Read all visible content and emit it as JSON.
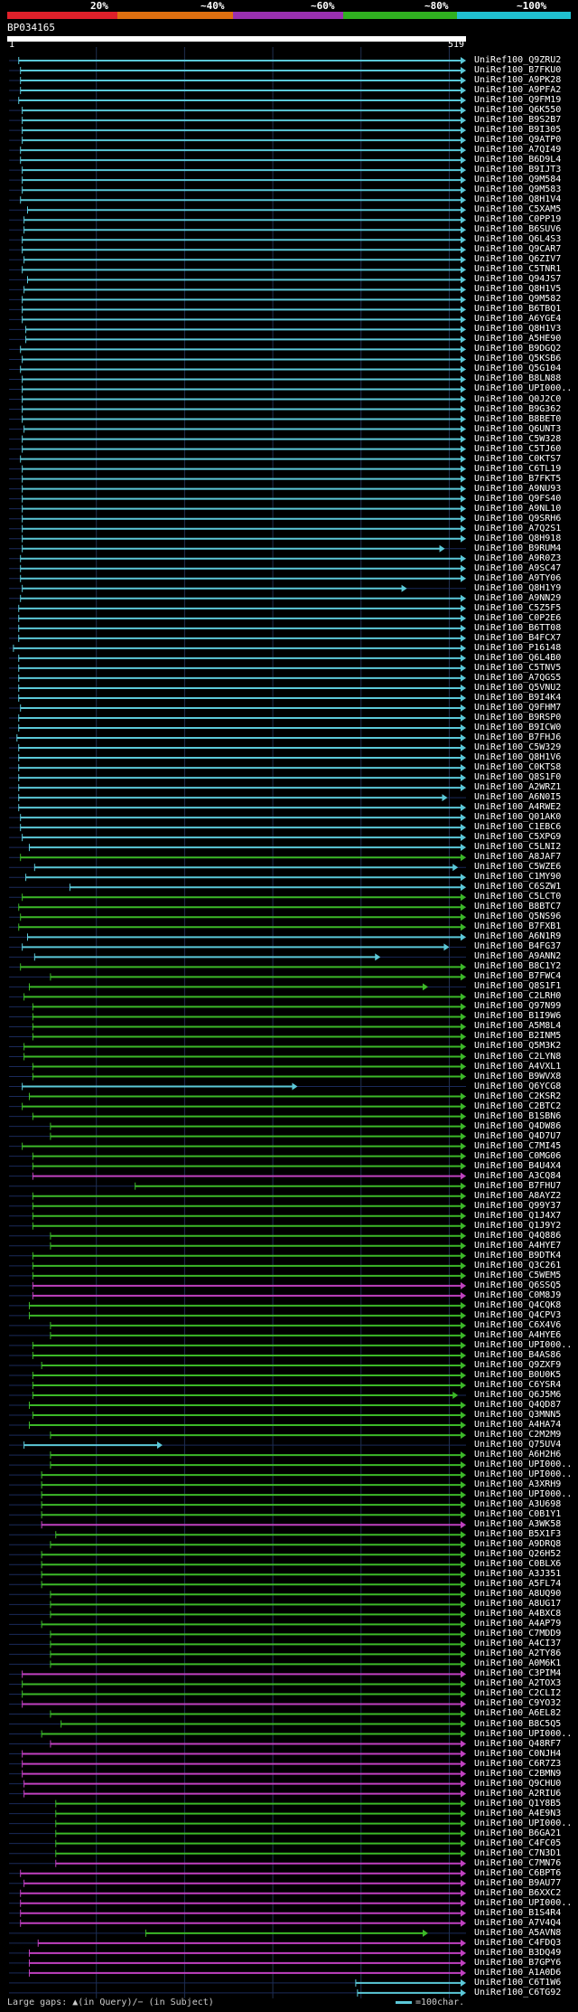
{
  "legend": [
    {
      "label": "20%",
      "color": "#e0202a"
    },
    {
      "label": "~40%",
      "color": "#e07010"
    },
    {
      "label": "~60%",
      "color": "#9a30b0"
    },
    {
      "label": "~80%",
      "color": "#30b020"
    },
    {
      "label": "~100%",
      "color": "#20c0d0"
    }
  ],
  "query": {
    "name": "BP034165",
    "start": "1",
    "end": "519"
  },
  "footer": {
    "gaps_text": "Large gaps: ▲(in Query)/− (in Subject)",
    "scale_text": "=100char."
  },
  "colors": {
    "cyan": "#5bc8d8",
    "green": "#3cb828",
    "magenta": "#c040c0",
    "grid": "#203050",
    "ruler": "#ffffff"
  },
  "hits": [
    {
      "name": "UniRef100_Q9ZRU2",
      "c": "cyan",
      "s": 12,
      "e": 519
    },
    {
      "name": "UniRef100_B7FKU0",
      "c": "cyan",
      "s": 14,
      "e": 519
    },
    {
      "name": "UniRef100_A9PK28",
      "c": "cyan",
      "s": 14,
      "e": 519
    },
    {
      "name": "UniRef100_A9PFA2",
      "c": "cyan",
      "s": 14,
      "e": 519
    },
    {
      "name": "UniRef100_Q9FM19",
      "c": "cyan",
      "s": 12,
      "e": 519
    },
    {
      "name": "UniRef100_Q6K550",
      "c": "cyan",
      "s": 16,
      "e": 519
    },
    {
      "name": "UniRef100_B9S2B7",
      "c": "cyan",
      "s": 16,
      "e": 519
    },
    {
      "name": "UniRef100_B9I305",
      "c": "cyan",
      "s": 16,
      "e": 519
    },
    {
      "name": "UniRef100_Q9ATP0",
      "c": "cyan",
      "s": 16,
      "e": 519
    },
    {
      "name": "UniRef100_A7QI49",
      "c": "cyan",
      "s": 14,
      "e": 519
    },
    {
      "name": "UniRef100_B6D9L4",
      "c": "cyan",
      "s": 14,
      "e": 519
    },
    {
      "name": "UniRef100_B9IJT3",
      "c": "cyan",
      "s": 16,
      "e": 519
    },
    {
      "name": "UniRef100_Q9M584",
      "c": "cyan",
      "s": 16,
      "e": 519
    },
    {
      "name": "UniRef100_Q9M583",
      "c": "cyan",
      "s": 16,
      "e": 519
    },
    {
      "name": "UniRef100_Q8H1V4",
      "c": "cyan",
      "s": 14,
      "e": 519
    },
    {
      "name": "UniRef100_C5XAM5",
      "c": "cyan",
      "s": 22,
      "e": 519
    },
    {
      "name": "UniRef100_C0PP19",
      "c": "cyan",
      "s": 18,
      "e": 519
    },
    {
      "name": "UniRef100_B6SUV6",
      "c": "cyan",
      "s": 18,
      "e": 519
    },
    {
      "name": "UniRef100_Q6L4S3",
      "c": "cyan",
      "s": 16,
      "e": 519
    },
    {
      "name": "UniRef100_Q9CAR7",
      "c": "cyan",
      "s": 16,
      "e": 519
    },
    {
      "name": "UniRef100_Q6ZIV7",
      "c": "cyan",
      "s": 18,
      "e": 519
    },
    {
      "name": "UniRef100_C5TNR1",
      "c": "cyan",
      "s": 16,
      "e": 519
    },
    {
      "name": "UniRef100_Q94JS7",
      "c": "cyan",
      "s": 22,
      "e": 519
    },
    {
      "name": "UniRef100_Q8H1V5",
      "c": "cyan",
      "s": 18,
      "e": 519
    },
    {
      "name": "UniRef100_Q9M582",
      "c": "cyan",
      "s": 16,
      "e": 519
    },
    {
      "name": "UniRef100_B6TBQ1",
      "c": "cyan",
      "s": 16,
      "e": 519
    },
    {
      "name": "UniRef100_A6YGE4",
      "c": "cyan",
      "s": 16,
      "e": 519
    },
    {
      "name": "UniRef100_Q8H1V3",
      "c": "cyan",
      "s": 20,
      "e": 519
    },
    {
      "name": "UniRef100_A5HE90",
      "c": "cyan",
      "s": 20,
      "e": 519
    },
    {
      "name": "UniRef100_B9DGQ2",
      "c": "cyan",
      "s": 14,
      "e": 519
    },
    {
      "name": "UniRef100_Q5KSB6",
      "c": "cyan",
      "s": 16,
      "e": 519
    },
    {
      "name": "UniRef100_Q5G104",
      "c": "cyan",
      "s": 14,
      "e": 519
    },
    {
      "name": "UniRef100_B8LN88",
      "c": "cyan",
      "s": 16,
      "e": 519
    },
    {
      "name": "UniRef100_UPI000..",
      "c": "cyan",
      "s": 16,
      "e": 519
    },
    {
      "name": "UniRef100_Q0J2C0",
      "c": "cyan",
      "s": 16,
      "e": 519
    },
    {
      "name": "UniRef100_B9G362",
      "c": "cyan",
      "s": 16,
      "e": 519
    },
    {
      "name": "UniRef100_B8BET0",
      "c": "cyan",
      "s": 16,
      "e": 519
    },
    {
      "name": "UniRef100_Q6UNT3",
      "c": "cyan",
      "s": 18,
      "e": 519
    },
    {
      "name": "UniRef100_C5W328",
      "c": "cyan",
      "s": 16,
      "e": 519
    },
    {
      "name": "UniRef100_C5TJ60",
      "c": "cyan",
      "s": 16,
      "e": 519
    },
    {
      "name": "UniRef100_C0KTS7",
      "c": "cyan",
      "s": 14,
      "e": 519
    },
    {
      "name": "UniRef100_C6TL19",
      "c": "cyan",
      "s": 16,
      "e": 519
    },
    {
      "name": "UniRef100_B7FKT5",
      "c": "cyan",
      "s": 16,
      "e": 519
    },
    {
      "name": "UniRef100_A9NU93",
      "c": "cyan",
      "s": 16,
      "e": 519
    },
    {
      "name": "UniRef100_Q9FS40",
      "c": "cyan",
      "s": 16,
      "e": 519
    },
    {
      "name": "UniRef100_A9NL10",
      "c": "cyan",
      "s": 16,
      "e": 519
    },
    {
      "name": "UniRef100_Q9SRH6",
      "c": "cyan",
      "s": 16,
      "e": 519
    },
    {
      "name": "UniRef100_A7Q2S1",
      "c": "cyan",
      "s": 16,
      "e": 519
    },
    {
      "name": "UniRef100_Q8H918",
      "c": "cyan",
      "s": 16,
      "e": 519
    },
    {
      "name": "UniRef100_B9RUM4",
      "c": "cyan",
      "s": 16,
      "e": 495
    },
    {
      "name": "UniRef100_A9R0Z3",
      "c": "cyan",
      "s": 14,
      "e": 519
    },
    {
      "name": "UniRef100_A9SC47",
      "c": "cyan",
      "s": 14,
      "e": 519
    },
    {
      "name": "UniRef100_A9TY06",
      "c": "cyan",
      "s": 14,
      "e": 519
    },
    {
      "name": "UniRef100_Q8H1Y9",
      "c": "cyan",
      "s": 16,
      "e": 452
    },
    {
      "name": "UniRef100_A9NN29",
      "c": "cyan",
      "s": 14,
      "e": 519
    },
    {
      "name": "UniRef100_C5Z5F5",
      "c": "cyan",
      "s": 12,
      "e": 519
    },
    {
      "name": "UniRef100_C0P2E6",
      "c": "cyan",
      "s": 12,
      "e": 519
    },
    {
      "name": "UniRef100_B6TT08",
      "c": "cyan",
      "s": 12,
      "e": 519
    },
    {
      "name": "UniRef100_B4FCX7",
      "c": "cyan",
      "s": 12,
      "e": 519
    },
    {
      "name": "UniRef100_P16148",
      "c": "cyan",
      "s": 6,
      "e": 519
    },
    {
      "name": "UniRef100_Q6L4B0",
      "c": "cyan",
      "s": 12,
      "e": 519
    },
    {
      "name": "UniRef100_C5TNV5",
      "c": "cyan",
      "s": 12,
      "e": 519
    },
    {
      "name": "UniRef100_A7QGS5",
      "c": "cyan",
      "s": 12,
      "e": 519
    },
    {
      "name": "UniRef100_Q5VNU2",
      "c": "cyan",
      "s": 12,
      "e": 519
    },
    {
      "name": "UniRef100_B9I4K4",
      "c": "cyan",
      "s": 12,
      "e": 519
    },
    {
      "name": "UniRef100_Q9FHM7",
      "c": "cyan",
      "s": 14,
      "e": 519
    },
    {
      "name": "UniRef100_B9RSP0",
      "c": "cyan",
      "s": 12,
      "e": 519
    },
    {
      "name": "UniRef100_B9ICW0",
      "c": "cyan",
      "s": 12,
      "e": 519
    },
    {
      "name": "UniRef100_B7FHJ6",
      "c": "cyan",
      "s": 10,
      "e": 519
    },
    {
      "name": "UniRef100_C5W329",
      "c": "cyan",
      "s": 12,
      "e": 519
    },
    {
      "name": "UniRef100_Q8H1V6",
      "c": "cyan",
      "s": 12,
      "e": 519
    },
    {
      "name": "UniRef100_C0KTS8",
      "c": "cyan",
      "s": 12,
      "e": 519
    },
    {
      "name": "UniRef100_Q8S1F0",
      "c": "cyan",
      "s": 12,
      "e": 519
    },
    {
      "name": "UniRef100_A2WRZ1",
      "c": "cyan",
      "s": 12,
      "e": 519
    },
    {
      "name": "UniRef100_A6N0I5",
      "c": "cyan",
      "s": 12,
      "e": 498
    },
    {
      "name": "UniRef100_A4RWE2",
      "c": "cyan",
      "s": 12,
      "e": 519
    },
    {
      "name": "UniRef100_Q01AK0",
      "c": "cyan",
      "s": 14,
      "e": 519
    },
    {
      "name": "UniRef100_C1EBC6",
      "c": "cyan",
      "s": 14,
      "e": 519
    },
    {
      "name": "UniRef100_C5XPG9",
      "c": "cyan",
      "s": 16,
      "e": 519
    },
    {
      "name": "UniRef100_C5LNI2",
      "c": "cyan",
      "s": 24,
      "e": 519
    },
    {
      "name": "UniRef100_A8JAF7",
      "c": "green",
      "s": 14,
      "e": 519
    },
    {
      "name": "UniRef100_C5WZE6",
      "c": "cyan",
      "s": 30,
      "e": 510
    },
    {
      "name": "UniRef100_C1MY90",
      "c": "cyan",
      "s": 20,
      "e": 519
    },
    {
      "name": "UniRef100_C6SZW1",
      "c": "cyan",
      "s": 70,
      "e": 519
    },
    {
      "name": "UniRef100_C5LCT0",
      "c": "green",
      "s": 16,
      "e": 519
    },
    {
      "name": "UniRef100_B8BTC7",
      "c": "green",
      "s": 12,
      "e": 519
    },
    {
      "name": "UniRef100_Q5NS96",
      "c": "green",
      "s": 14,
      "e": 519
    },
    {
      "name": "UniRef100_B7FXB1",
      "c": "green",
      "s": 12,
      "e": 519
    },
    {
      "name": "UniRef100_A6N1R9",
      "c": "cyan",
      "s": 22,
      "e": 519
    },
    {
      "name": "UniRef100_B4FG37",
      "c": "cyan",
      "s": 16,
      "e": 500
    },
    {
      "name": "UniRef100_A9ANN2",
      "c": "cyan",
      "s": 30,
      "e": 422
    },
    {
      "name": "UniRef100_B8C1Y2",
      "c": "green",
      "s": 14,
      "e": 519
    },
    {
      "name": "UniRef100_B7FWC4",
      "c": "green",
      "s": 48,
      "e": 519
    },
    {
      "name": "UniRef100_Q8S1F1",
      "c": "green",
      "s": 24,
      "e": 476
    },
    {
      "name": "UniRef100_C2LRH0",
      "c": "green",
      "s": 18,
      "e": 519
    },
    {
      "name": "UniRef100_Q97N99",
      "c": "green",
      "s": 28,
      "e": 519
    },
    {
      "name": "UniRef100_B1I9W6",
      "c": "green",
      "s": 28,
      "e": 519
    },
    {
      "name": "UniRef100_A5M8L4",
      "c": "green",
      "s": 28,
      "e": 519
    },
    {
      "name": "UniRef100_B2INM5",
      "c": "green",
      "s": 28,
      "e": 519
    },
    {
      "name": "UniRef100_Q5M3K2",
      "c": "green",
      "s": 18,
      "e": 519
    },
    {
      "name": "UniRef100_C2LYN8",
      "c": "green",
      "s": 18,
      "e": 519
    },
    {
      "name": "UniRef100_A4VXL1",
      "c": "green",
      "s": 28,
      "e": 519
    },
    {
      "name": "UniRef100_B9WVX8",
      "c": "green",
      "s": 28,
      "e": 519
    },
    {
      "name": "UniRef100_Q6YCG8",
      "c": "cyan",
      "s": 16,
      "e": 328
    },
    {
      "name": "UniRef100_C2KSR2",
      "c": "green",
      "s": 24,
      "e": 519
    },
    {
      "name": "UniRef100_C2BTC2",
      "c": "green",
      "s": 16,
      "e": 519
    },
    {
      "name": "UniRef100_B1SBN6",
      "c": "green",
      "s": 28,
      "e": 519
    },
    {
      "name": "UniRef100_Q4DW86",
      "c": "green",
      "s": 48,
      "e": 519
    },
    {
      "name": "UniRef100_Q4D7U7",
      "c": "green",
      "s": 48,
      "e": 519
    },
    {
      "name": "UniRef100_C7MI45",
      "c": "green",
      "s": 16,
      "e": 519
    },
    {
      "name": "UniRef100_C0MG06",
      "c": "green",
      "s": 28,
      "e": 519
    },
    {
      "name": "UniRef100_B4U4X4",
      "c": "green",
      "s": 28,
      "e": 519
    },
    {
      "name": "UniRef100_A3CQ84",
      "c": "magenta",
      "s": 28,
      "e": 519
    },
    {
      "name": "UniRef100_B7FHU7",
      "c": "green",
      "s": 144,
      "e": 519
    },
    {
      "name": "UniRef100_A8AYZ2",
      "c": "green",
      "s": 28,
      "e": 519
    },
    {
      "name": "UniRef100_Q99Y37",
      "c": "green",
      "s": 28,
      "e": 519
    },
    {
      "name": "UniRef100_Q1J4X7",
      "c": "green",
      "s": 28,
      "e": 519
    },
    {
      "name": "UniRef100_Q1J9Y2",
      "c": "green",
      "s": 28,
      "e": 519
    },
    {
      "name": "UniRef100_Q4Q886",
      "c": "green",
      "s": 48,
      "e": 519
    },
    {
      "name": "UniRef100_A4HYE7",
      "c": "green",
      "s": 48,
      "e": 519
    },
    {
      "name": "UniRef100_B9DTK4",
      "c": "green",
      "s": 28,
      "e": 519
    },
    {
      "name": "UniRef100_Q3C261",
      "c": "green",
      "s": 28,
      "e": 519
    },
    {
      "name": "UniRef100_C5WEM5",
      "c": "green",
      "s": 28,
      "e": 519
    },
    {
      "name": "UniRef100_Q6SSQ5",
      "c": "magenta",
      "s": 28,
      "e": 519
    },
    {
      "name": "UniRef100_C0M8J9",
      "c": "magenta",
      "s": 28,
      "e": 519
    },
    {
      "name": "UniRef100_Q4CQK8",
      "c": "green",
      "s": 24,
      "e": 519
    },
    {
      "name": "UniRef100_Q4CPV3",
      "c": "green",
      "s": 24,
      "e": 519
    },
    {
      "name": "UniRef100_C6X4V6",
      "c": "green",
      "s": 48,
      "e": 519
    },
    {
      "name": "UniRef100_A4HYE6",
      "c": "green",
      "s": 48,
      "e": 519
    },
    {
      "name": "UniRef100_UPI000..",
      "c": "green",
      "s": 28,
      "e": 519
    },
    {
      "name": "UniRef100_B4AS86",
      "c": "green",
      "s": 28,
      "e": 519
    },
    {
      "name": "UniRef100_Q9ZXF9",
      "c": "green",
      "s": 38,
      "e": 519
    },
    {
      "name": "UniRef100_B0U0K5",
      "c": "green",
      "s": 28,
      "e": 519
    },
    {
      "name": "UniRef100_C6YSR4",
      "c": "green",
      "s": 28,
      "e": 519
    },
    {
      "name": "UniRef100_Q6J5M6",
      "c": "green",
      "s": 28,
      "e": 510
    },
    {
      "name": "UniRef100_Q4QD87",
      "c": "green",
      "s": 24,
      "e": 519
    },
    {
      "name": "UniRef100_Q3MNN5",
      "c": "green",
      "s": 28,
      "e": 519
    },
    {
      "name": "UniRef100_A4HA74",
      "c": "green",
      "s": 24,
      "e": 519
    },
    {
      "name": "UniRef100_C2M2M9",
      "c": "green",
      "s": 48,
      "e": 519
    },
    {
      "name": "UniRef100_Q75UV4",
      "c": "cyan",
      "s": 18,
      "e": 175
    },
    {
      "name": "UniRef100_A6H2H6",
      "c": "green",
      "s": 48,
      "e": 519
    },
    {
      "name": "UniRef100_UPI000..",
      "c": "green",
      "s": 48,
      "e": 519
    },
    {
      "name": "UniRef100_UPI000..",
      "c": "green",
      "s": 38,
      "e": 519
    },
    {
      "name": "UniRef100_A3XRH9",
      "c": "green",
      "s": 38,
      "e": 519
    },
    {
      "name": "UniRef100_UPI000..",
      "c": "green",
      "s": 38,
      "e": 519
    },
    {
      "name": "UniRef100_A3U698",
      "c": "green",
      "s": 38,
      "e": 519
    },
    {
      "name": "UniRef100_C0B1Y1",
      "c": "green",
      "s": 38,
      "e": 519
    },
    {
      "name": "UniRef100_A3WK58",
      "c": "magenta",
      "s": 38,
      "e": 519
    },
    {
      "name": "UniRef100_B5X1F3",
      "c": "green",
      "s": 54,
      "e": 519
    },
    {
      "name": "UniRef100_A9DRQ8",
      "c": "green",
      "s": 48,
      "e": 519
    },
    {
      "name": "UniRef100_Q26H52",
      "c": "green",
      "s": 38,
      "e": 519
    },
    {
      "name": "UniRef100_C0BLX6",
      "c": "green",
      "s": 38,
      "e": 519
    },
    {
      "name": "UniRef100_A3J351",
      "c": "green",
      "s": 38,
      "e": 519
    },
    {
      "name": "UniRef100_A5FL74",
      "c": "green",
      "s": 38,
      "e": 519
    },
    {
      "name": "UniRef100_A8UQ90",
      "c": "green",
      "s": 48,
      "e": 519
    },
    {
      "name": "UniRef100_A8UG17",
      "c": "green",
      "s": 48,
      "e": 519
    },
    {
      "name": "UniRef100_A4BXC8",
      "c": "green",
      "s": 48,
      "e": 519
    },
    {
      "name": "UniRef100_A4AP79",
      "c": "green",
      "s": 38,
      "e": 519
    },
    {
      "name": "UniRef100_C7MDD9",
      "c": "green",
      "s": 48,
      "e": 519
    },
    {
      "name": "UniRef100_A4CI37",
      "c": "green",
      "s": 48,
      "e": 519
    },
    {
      "name": "UniRef100_A2TY86",
      "c": "green",
      "s": 48,
      "e": 519
    },
    {
      "name": "UniRef100_A0M6K1",
      "c": "green",
      "s": 48,
      "e": 519
    },
    {
      "name": "UniRef100_C3PIM4",
      "c": "magenta",
      "s": 16,
      "e": 519
    },
    {
      "name": "UniRef100_A2TOX3",
      "c": "green",
      "s": 16,
      "e": 519
    },
    {
      "name": "UniRef100_C2CLI2",
      "c": "green",
      "s": 16,
      "e": 519
    },
    {
      "name": "UniRef100_C9YO32",
      "c": "magenta",
      "s": 16,
      "e": 519
    },
    {
      "name": "UniRef100_A6EL82",
      "c": "green",
      "s": 48,
      "e": 519
    },
    {
      "name": "UniRef100_B8C5Q5",
      "c": "green",
      "s": 60,
      "e": 519
    },
    {
      "name": "UniRef100_UPI000..",
      "c": "green",
      "s": 38,
      "e": 519
    },
    {
      "name": "UniRef100_Q48RF7",
      "c": "magenta",
      "s": 48,
      "e": 519
    },
    {
      "name": "UniRef100_C0NJH4",
      "c": "magenta",
      "s": 16,
      "e": 519
    },
    {
      "name": "UniRef100_C6R7Z3",
      "c": "magenta",
      "s": 16,
      "e": 519
    },
    {
      "name": "UniRef100_C2BMN9",
      "c": "magenta",
      "s": 16,
      "e": 519
    },
    {
      "name": "UniRef100_Q9CHU0",
      "c": "magenta",
      "s": 18,
      "e": 519
    },
    {
      "name": "UniRef100_A2RIU6",
      "c": "magenta",
      "s": 18,
      "e": 519
    },
    {
      "name": "UniRef100_Q1Y8B5",
      "c": "green",
      "s": 54,
      "e": 519
    },
    {
      "name": "UniRef100_A4E9N3",
      "c": "green",
      "s": 54,
      "e": 519
    },
    {
      "name": "UniRef100_UPI000..",
      "c": "green",
      "s": 54,
      "e": 519
    },
    {
      "name": "UniRef100_B6GA21",
      "c": "green",
      "s": 54,
      "e": 519
    },
    {
      "name": "UniRef100_C4FC05",
      "c": "green",
      "s": 54,
      "e": 519
    },
    {
      "name": "UniRef100_C7N3D1",
      "c": "green",
      "s": 54,
      "e": 519
    },
    {
      "name": "UniRef100_C7MN76",
      "c": "magenta",
      "s": 54,
      "e": 519
    },
    {
      "name": "UniRef100_C6BPT6",
      "c": "magenta",
      "s": 14,
      "e": 519
    },
    {
      "name": "UniRef100_B9AU77",
      "c": "magenta",
      "s": 18,
      "e": 519
    },
    {
      "name": "UniRef100_B6XXC2",
      "c": "magenta",
      "s": 14,
      "e": 519
    },
    {
      "name": "UniRef100_UPI000..",
      "c": "magenta",
      "s": 14,
      "e": 519
    },
    {
      "name": "UniRef100_B1S4R4",
      "c": "magenta",
      "s": 14,
      "e": 519
    },
    {
      "name": "UniRef100_A7V4Q4",
      "c": "magenta",
      "s": 14,
      "e": 519
    },
    {
      "name": "UniRef100_A5AVN8",
      "c": "green",
      "s": 156,
      "e": 476
    },
    {
      "name": "UniRef100_C4FDQ3",
      "c": "magenta",
      "s": 34,
      "e": 519
    },
    {
      "name": "UniRef100_B3DQ49",
      "c": "magenta",
      "s": 24,
      "e": 519
    },
    {
      "name": "UniRef100_B7GPY6",
      "c": "magenta",
      "s": 24,
      "e": 519
    },
    {
      "name": "UniRef100_A1A0D6",
      "c": "magenta",
      "s": 24,
      "e": 519
    },
    {
      "name": "UniRef100_C6T1W6",
      "c": "cyan",
      "s": 394,
      "e": 519
    },
    {
      "name": "UniRef100_C6TG92",
      "c": "cyan",
      "s": 396,
      "e": 519
    }
  ]
}
